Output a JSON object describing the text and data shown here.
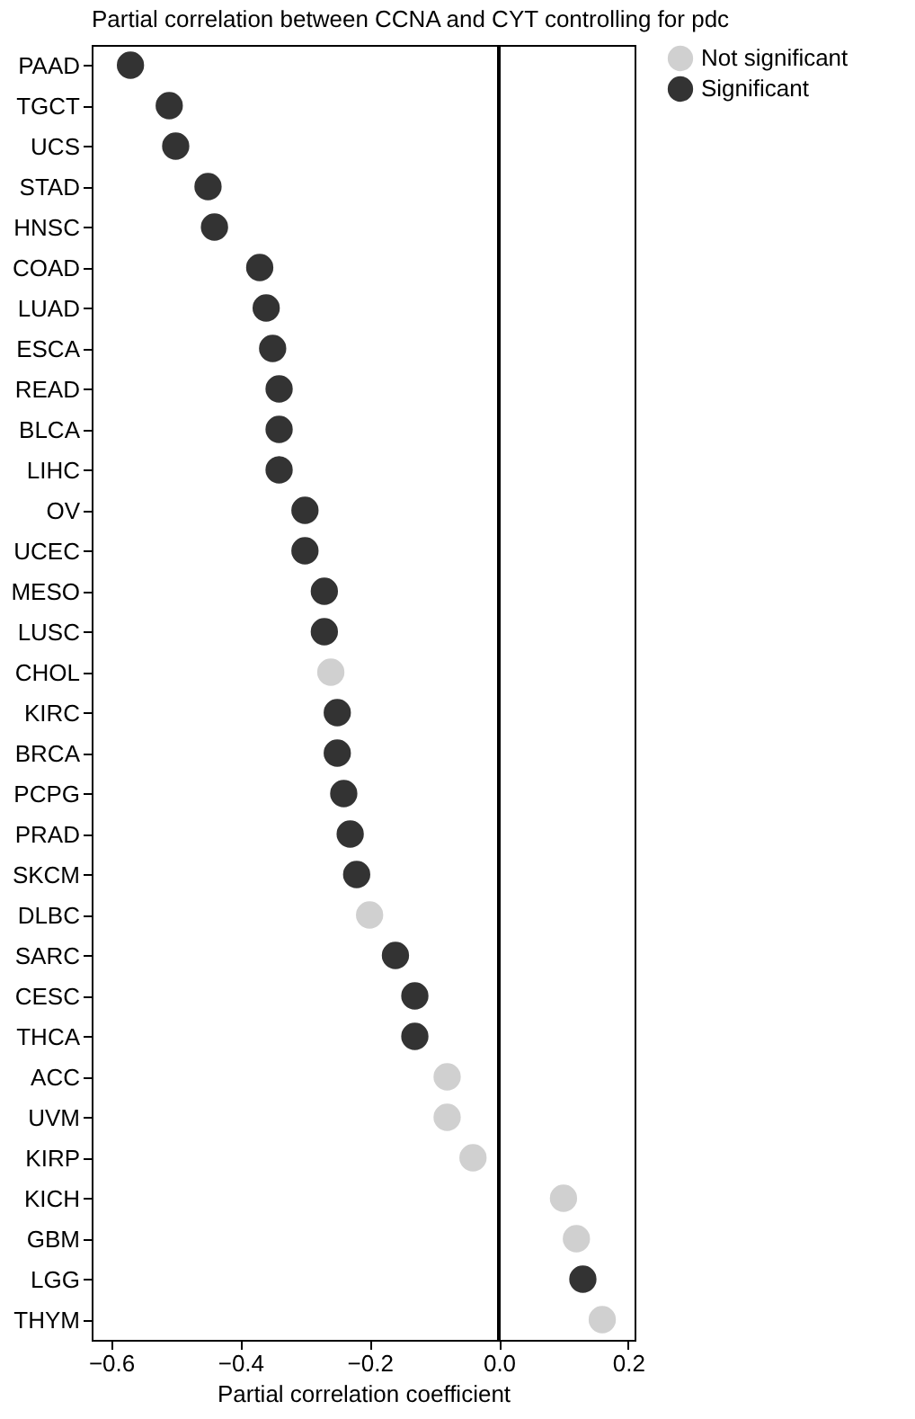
{
  "chart_data": {
    "type": "scatter",
    "title": "Partial correlation between CCNA and CYT controlling for pdc",
    "xlabel": "Partial correlation coefficient",
    "categories": [
      "PAAD",
      "TGCT",
      "UCS",
      "STAD",
      "HNSC",
      "COAD",
      "LUAD",
      "ESCA",
      "READ",
      "BLCA",
      "LIHC",
      "OV",
      "UCEC",
      "MESO",
      "LUSC",
      "CHOL",
      "KIRC",
      "BRCA",
      "PCPG",
      "PRAD",
      "SKCM",
      "DLBC",
      "SARC",
      "CESC",
      "THCA",
      "ACC",
      "UVM",
      "KIRP",
      "KICH",
      "GBM",
      "LGG",
      "THYM"
    ],
    "series": [
      {
        "name": "Not significant",
        "color": "#d0d0d0",
        "values": [
          null,
          null,
          null,
          null,
          null,
          null,
          null,
          null,
          null,
          null,
          null,
          null,
          null,
          null,
          null,
          -0.26,
          null,
          null,
          null,
          null,
          null,
          -0.2,
          null,
          null,
          null,
          -0.08,
          -0.08,
          -0.04,
          0.1,
          0.12,
          null,
          0.16
        ]
      },
      {
        "name": "Significant",
        "color": "#333333",
        "values": [
          -0.57,
          -0.51,
          -0.5,
          -0.45,
          -0.44,
          -0.37,
          -0.36,
          -0.35,
          -0.34,
          -0.34,
          -0.34,
          -0.3,
          -0.3,
          -0.27,
          -0.27,
          null,
          -0.25,
          -0.25,
          -0.24,
          -0.23,
          -0.22,
          null,
          -0.16,
          -0.13,
          -0.13,
          null,
          null,
          null,
          null,
          null,
          0.13,
          null
        ]
      }
    ],
    "xlim": [
      -0.63,
      0.21
    ],
    "xticks": [
      {
        "value": -0.6,
        "label": "−0.6"
      },
      {
        "value": -0.4,
        "label": "−0.4"
      },
      {
        "value": -0.2,
        "label": "−0.2"
      },
      {
        "value": 0,
        "label": "0.0"
      },
      {
        "value": 0.2,
        "label": "0.2"
      }
    ],
    "ref_lines": [
      {
        "axis": "x",
        "value": 0,
        "color": "#000000"
      }
    ],
    "orientation": "horizontal",
    "legend": "top right",
    "grid": false,
    "marker": "circle"
  }
}
